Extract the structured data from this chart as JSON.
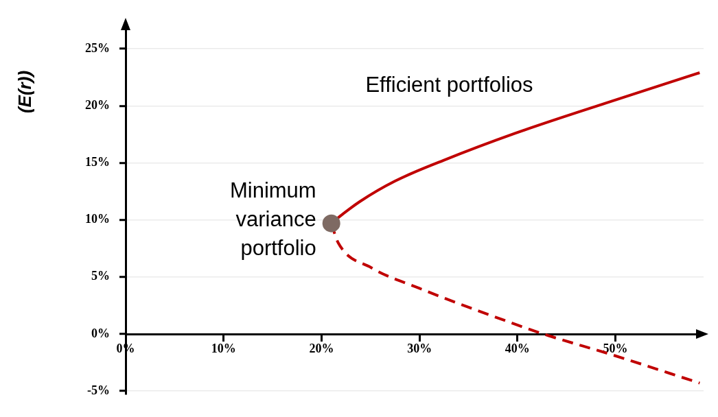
{
  "chart_data": {
    "type": "line",
    "ylabel": "(E(r))",
    "xlim": [
      0,
      59
    ],
    "ylim": [
      -5.3,
      27.3
    ],
    "xticks": [
      {
        "value": 0,
        "label": "0%"
      },
      {
        "value": 10,
        "label": "10%"
      },
      {
        "value": 20,
        "label": "20%"
      },
      {
        "value": 30,
        "label": "30%"
      },
      {
        "value": 40,
        "label": "40%"
      },
      {
        "value": 50,
        "label": "50%"
      }
    ],
    "yticks": [
      {
        "value": -5,
        "label": "-5%"
      },
      {
        "value": 0,
        "label": "0%"
      },
      {
        "value": 5,
        "label": "5%"
      },
      {
        "value": 10,
        "label": "10%"
      },
      {
        "value": 15,
        "label": "15%"
      },
      {
        "value": 20,
        "label": "20%"
      },
      {
        "value": 25,
        "label": "25%"
      }
    ],
    "grid": "y",
    "legend": false,
    "series": [
      {
        "color": "#c00000",
        "line_style": "solid",
        "marker": "none",
        "x": [
          21.0,
          21.7,
          23.9,
          27.5,
          32.4,
          39.8,
          49.6,
          58.6
        ],
        "values": [
          9.7,
          10.2,
          11.6,
          13.4,
          15.2,
          17.6,
          20.4,
          22.9
        ]
      },
      {
        "color": "#c00000",
        "line_style": "dashed",
        "marker": "none",
        "x": [
          21.0,
          21.7,
          25.1,
          30.0,
          39.8,
          43.2,
          49.6,
          58.6
        ],
        "values": [
          9.7,
          8.0,
          5.8,
          4.0,
          0.85,
          -0.15,
          -1.8,
          -4.3
        ]
      },
      {
        "type": "scatter",
        "color": "#7e6a63",
        "marker": "circle",
        "x": [
          21.0
        ],
        "values": [
          9.7
        ]
      }
    ],
    "annotations": [
      "Efficient portfolios",
      "Minimum\nvariance\nportfolio"
    ]
  }
}
